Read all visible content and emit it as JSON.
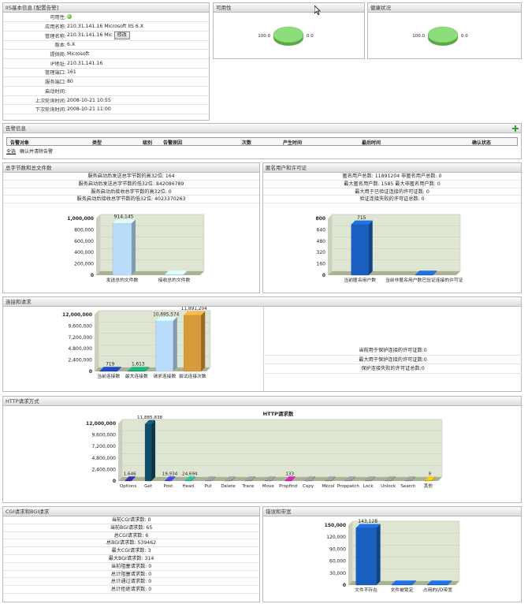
{
  "iis_panel": {
    "title": "IIS基本信息",
    "config_link": "[配置告警]",
    "rows": [
      {
        "key": "可用性:",
        "value": ""
      },
      {
        "key": "应用名称:",
        "value": "210.31.141.16 Microsoft IIS 6.X"
      },
      {
        "key": "管理名称:",
        "value": "210.31.141.16 Mic"
      },
      {
        "key": "版本:",
        "value": "6.X"
      },
      {
        "key": "提供商:",
        "value": "Microsoft"
      },
      {
        "key": "IP地址:",
        "value": "210.31.141.16"
      },
      {
        "key": "管理端口:",
        "value": "161"
      },
      {
        "key": "服务端口:",
        "value": "80"
      },
      {
        "key": "启动时间:",
        "value": ""
      },
      {
        "key": "上次轮询时间:",
        "value": "2008-10-21 10:55"
      },
      {
        "key": "下次轮询时间:",
        "value": "2008-10-21 11:00"
      }
    ],
    "modify_button": "修改",
    "availability_color": "#33aa22"
  },
  "availability_panel": {
    "title": "可用性",
    "chart_data": {
      "type": "pie",
      "labels": [
        "100.0",
        "0.0"
      ],
      "values": [
        100.0,
        0.0
      ]
    }
  },
  "health_panel": {
    "title": "健康状况",
    "chart_data": {
      "type": "pie",
      "labels": [
        "100.0",
        "0.0"
      ],
      "values": [
        100.0,
        0.0
      ]
    }
  },
  "alert_panel": {
    "title": "告警信息",
    "columns": [
      "告警对象",
      "类型",
      "级别",
      "告警原因",
      "次数",
      "产生时间",
      "最后时间",
      "确认状态"
    ],
    "select_all": "全选",
    "confirm_clear": "确认并清除告警"
  },
  "bytes_panel": {
    "title": "总字节数和总文件数",
    "rows": [
      "服务启动后发送总字节数的高32位: 164",
      "服务启动后发送总字节数的低32位: 842086789",
      "服务启动后接收总字节数的高32位: 0",
      "服务启动后接收总字节数的低32位: 4023370263"
    ],
    "chart_data": {
      "type": "bar",
      "categories": [
        "发送总的文件数",
        "接收总的文件数"
      ],
      "values": [
        914145,
        0
      ],
      "value_labels": [
        "914,145",
        ""
      ],
      "yticks": [
        "0",
        "200,000",
        "400,000",
        "600,000",
        "800,000",
        "1,000,000"
      ],
      "ylim": [
        0,
        1000000
      ],
      "colors": [
        "#b9dcfa",
        "#b9dcfa"
      ]
    }
  },
  "anon_panel": {
    "title": "匿名用户和许可证",
    "rows": [
      "匿名用户总数: 11891204      非匿名用户总数: 0",
      "最大匿名用户数: 1585      最大非匿名用户数: 0",
      "最大用于已验证连接的许可证数: 0",
      "验证连接失败的许可证总数: 0"
    ],
    "chart_data": {
      "type": "bar",
      "categories": [
        "当前匿名用户数",
        "当前非匿名用户数已验证连接的许可证"
      ],
      "values": [
        715,
        0
      ],
      "value_labels": [
        "715",
        ""
      ],
      "yticks": [
        "0",
        "160",
        "320",
        "480",
        "640",
        "800"
      ],
      "ylim": [
        0,
        800
      ],
      "colors": [
        "#1a5fbf",
        "#1a5fbf"
      ]
    }
  },
  "conn_panel": {
    "title": "连接和请求",
    "rows": [
      "当前用于保护连接的许可证数:0",
      "最大用于保护连接的许可证数:0",
      "保护连接失败的许可证总数:0"
    ],
    "chart_data": {
      "type": "bar",
      "categories": [
        "当前连接数",
        "最大连接数",
        "请求连接数",
        "尝试连接次数"
      ],
      "values": [
        719,
        1613,
        10695574,
        11891204
      ],
      "value_labels": [
        "719",
        "1,613",
        "10,695,574",
        "11,891,204"
      ],
      "yticks": [
        "0",
        "2,400,000",
        "4,800,000",
        "7,200,000",
        "9,600,000",
        "12,000,000"
      ],
      "ylim": [
        0,
        12000000
      ],
      "colors": [
        "#1a3fa8",
        "#1a9a6a",
        "#b9dcfa",
        "#d69a3a"
      ]
    }
  },
  "http_panel": {
    "title": "HTTP请求方式",
    "chart_data": {
      "type": "bar",
      "title": "HTTP请求数",
      "categories": [
        "Options",
        "Get",
        "Post",
        "Head",
        "Put",
        "Delete",
        "Trace",
        "Move",
        "Propfind",
        "Copy",
        "Mkcol",
        "Proppatch",
        "Lock",
        "Unlock",
        "Search",
        "其他"
      ],
      "values": [
        1646,
        11885838,
        19934,
        24694,
        0,
        0,
        0,
        0,
        133,
        0,
        0,
        0,
        0,
        0,
        0,
        9
      ],
      "value_labels": [
        "1,646",
        "11,885,838",
        "19,934",
        "24,694",
        "",
        "",
        "",
        "",
        "133",
        "",
        "",
        "",
        "",
        "",
        "",
        "9"
      ],
      "yticks": [
        "0",
        "2,400,000",
        "4,800,000",
        "7,200,000",
        "9,600,000",
        "12,000,000"
      ],
      "ylim": [
        0,
        12000000
      ],
      "colors": [
        "#2a2a9a",
        "#0f4f6a",
        "#3a3ad0",
        "#1aa88a",
        "#888888",
        "#888888",
        "#888888",
        "#888888",
        "#c01aa0",
        "#888888",
        "#888888",
        "#888888",
        "#888888",
        "#888888",
        "#888888",
        "#d0b000"
      ]
    }
  },
  "cgi_panel": {
    "title": "CGI请求和BGI请求",
    "rows": [
      "当前CGI请求数: 0",
      "当前BGI请求数: 65",
      "总CGI请求数: 6",
      "总BGI请求数: 539462",
      "最大CGI请求数: 3",
      "最大BGI请求数: 314",
      "当前阻塞请求数: 0",
      "总计阻塞请求数: 0",
      "总计通过请求数: 0",
      "总计拒绝请求数: 0"
    ]
  },
  "error_panel": {
    "title": "错误和带宽",
    "chart_data": {
      "type": "bar",
      "categories": [
        "文件不存在",
        "文件被锁定",
        "占用的I/O带宽"
      ],
      "values": [
        143128,
        0,
        0
      ],
      "value_labels": [
        "143,128",
        "",
        ""
      ],
      "yticks": [
        "0",
        "30,000",
        "60,000",
        "90,000",
        "120,000",
        "150,000"
      ],
      "ylim": [
        0,
        150000
      ],
      "colors": [
        "#1a5fbf",
        "#1a5fbf",
        "#1a5fbf"
      ]
    }
  }
}
